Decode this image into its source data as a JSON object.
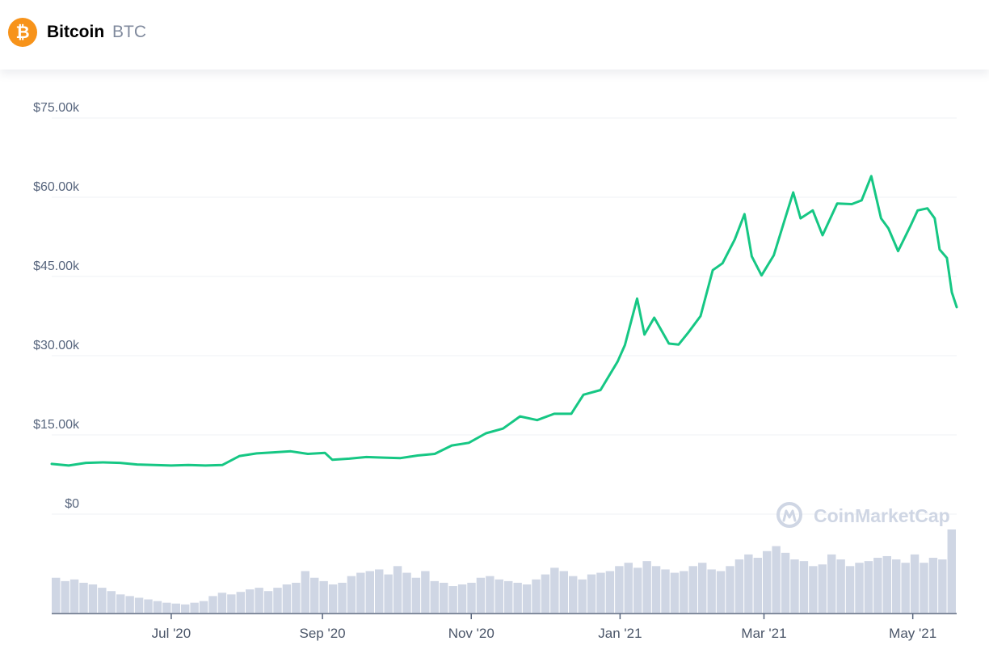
{
  "coin": {
    "logo_glyph": "₿",
    "name": "Bitcoin",
    "symbol": "BTC",
    "icon": "bitcoin-icon",
    "color": "#f7931a"
  },
  "watermark": {
    "text": "CoinMarketCap",
    "icon": "coinmarketcap-logo-icon"
  },
  "colors": {
    "line": "#16c784",
    "volume": "#cfd6e4",
    "grid": "#eff2f5",
    "axis_text": "#58667e"
  },
  "chart_data": {
    "type": "line",
    "title": "",
    "xlabel": "",
    "ylabel": "",
    "y_tick_labels": [
      "$0",
      "$15.00k",
      "$30.00k",
      "$45.00k",
      "$60.00k",
      "$75.00k"
    ],
    "y_ticks": [
      0,
      15000,
      30000,
      45000,
      60000,
      75000
    ],
    "ylim": [
      0,
      75000
    ],
    "x_tick_labels": [
      "Jul '20",
      "Sep '20",
      "Nov '20",
      "Jan '21",
      "Mar '21",
      "May '21"
    ],
    "x_ticks": [
      "2020-07-01",
      "2020-09-01",
      "2020-11-01",
      "2021-01-01",
      "2021-03-01",
      "2021-05-01"
    ],
    "xlim": [
      "2020-05-13",
      "2021-05-19"
    ],
    "grid": true,
    "series": [
      {
        "values_description": "Bitcoin price (USD)",
        "x": [
          "2020-05-13",
          "2020-05-20",
          "2020-05-27",
          "2020-06-03",
          "2020-06-10",
          "2020-06-17",
          "2020-06-24",
          "2020-07-01",
          "2020-07-08",
          "2020-07-15",
          "2020-07-22",
          "2020-07-29",
          "2020-08-05",
          "2020-08-12",
          "2020-08-19",
          "2020-08-26",
          "2020-09-02",
          "2020-09-05",
          "2020-09-12",
          "2020-09-19",
          "2020-09-26",
          "2020-10-03",
          "2020-10-10",
          "2020-10-17",
          "2020-10-24",
          "2020-10-31",
          "2020-11-07",
          "2020-11-14",
          "2020-11-21",
          "2020-11-28",
          "2020-12-05",
          "2020-12-12",
          "2020-12-17",
          "2020-12-24",
          "2020-12-31",
          "2021-01-03",
          "2021-01-08",
          "2021-01-11",
          "2021-01-15",
          "2021-01-21",
          "2021-01-25",
          "2021-01-29",
          "2021-02-03",
          "2021-02-08",
          "2021-02-12",
          "2021-02-17",
          "2021-02-21",
          "2021-02-24",
          "2021-02-28",
          "2021-03-05",
          "2021-03-10",
          "2021-03-13",
          "2021-03-16",
          "2021-03-21",
          "2021-03-25",
          "2021-03-31",
          "2021-04-06",
          "2021-04-10",
          "2021-04-14",
          "2021-04-18",
          "2021-04-21",
          "2021-04-25",
          "2021-04-30",
          "2021-05-03",
          "2021-05-07",
          "2021-05-10",
          "2021-05-12",
          "2021-05-15",
          "2021-05-17",
          "2021-05-19"
        ],
        "values": [
          9500,
          9200,
          9700,
          9800,
          9700,
          9400,
          9300,
          9200,
          9300,
          9200,
          9300,
          11000,
          11500,
          11700,
          11900,
          11400,
          11600,
          10300,
          10500,
          10800,
          10700,
          10600,
          11100,
          11400,
          13000,
          13500,
          15300,
          16200,
          18500,
          17800,
          19000,
          19000,
          22600,
          23500,
          28900,
          32000,
          40800,
          34000,
          37200,
          32300,
          32100,
          34400,
          37500,
          46200,
          47500,
          52000,
          56800,
          48800,
          45200,
          49000,
          56500,
          60900,
          56000,
          57500,
          52800,
          58800,
          58700,
          59400,
          64000,
          56000,
          54100,
          49800,
          54500,
          57500,
          57900,
          56000,
          50100,
          48500,
          42000,
          39200
        ]
      }
    ],
    "volume_bars": {
      "description": "trading volume bars (relative heights, no axis labels)",
      "values": [
        0.42,
        0.38,
        0.4,
        0.36,
        0.34,
        0.3,
        0.26,
        0.22,
        0.2,
        0.18,
        0.16,
        0.14,
        0.12,
        0.11,
        0.1,
        0.12,
        0.14,
        0.2,
        0.24,
        0.22,
        0.25,
        0.28,
        0.3,
        0.26,
        0.3,
        0.34,
        0.36,
        0.5,
        0.42,
        0.38,
        0.34,
        0.36,
        0.44,
        0.48,
        0.5,
        0.52,
        0.46,
        0.56,
        0.48,
        0.42,
        0.5,
        0.38,
        0.36,
        0.32,
        0.34,
        0.36,
        0.42,
        0.44,
        0.4,
        0.38,
        0.36,
        0.34,
        0.4,
        0.46,
        0.54,
        0.5,
        0.44,
        0.4,
        0.46,
        0.48,
        0.5,
        0.56,
        0.6,
        0.54,
        0.62,
        0.56,
        0.52,
        0.48,
        0.5,
        0.56,
        0.6,
        0.52,
        0.5,
        0.56,
        0.64,
        0.7,
        0.66,
        0.74,
        0.8,
        0.72,
        0.64,
        0.62,
        0.56,
        0.58,
        0.7,
        0.64,
        0.56,
        0.6,
        0.62,
        0.66,
        0.68,
        0.64,
        0.6,
        0.7,
        0.6,
        0.66,
        0.64,
        1.0
      ]
    }
  }
}
